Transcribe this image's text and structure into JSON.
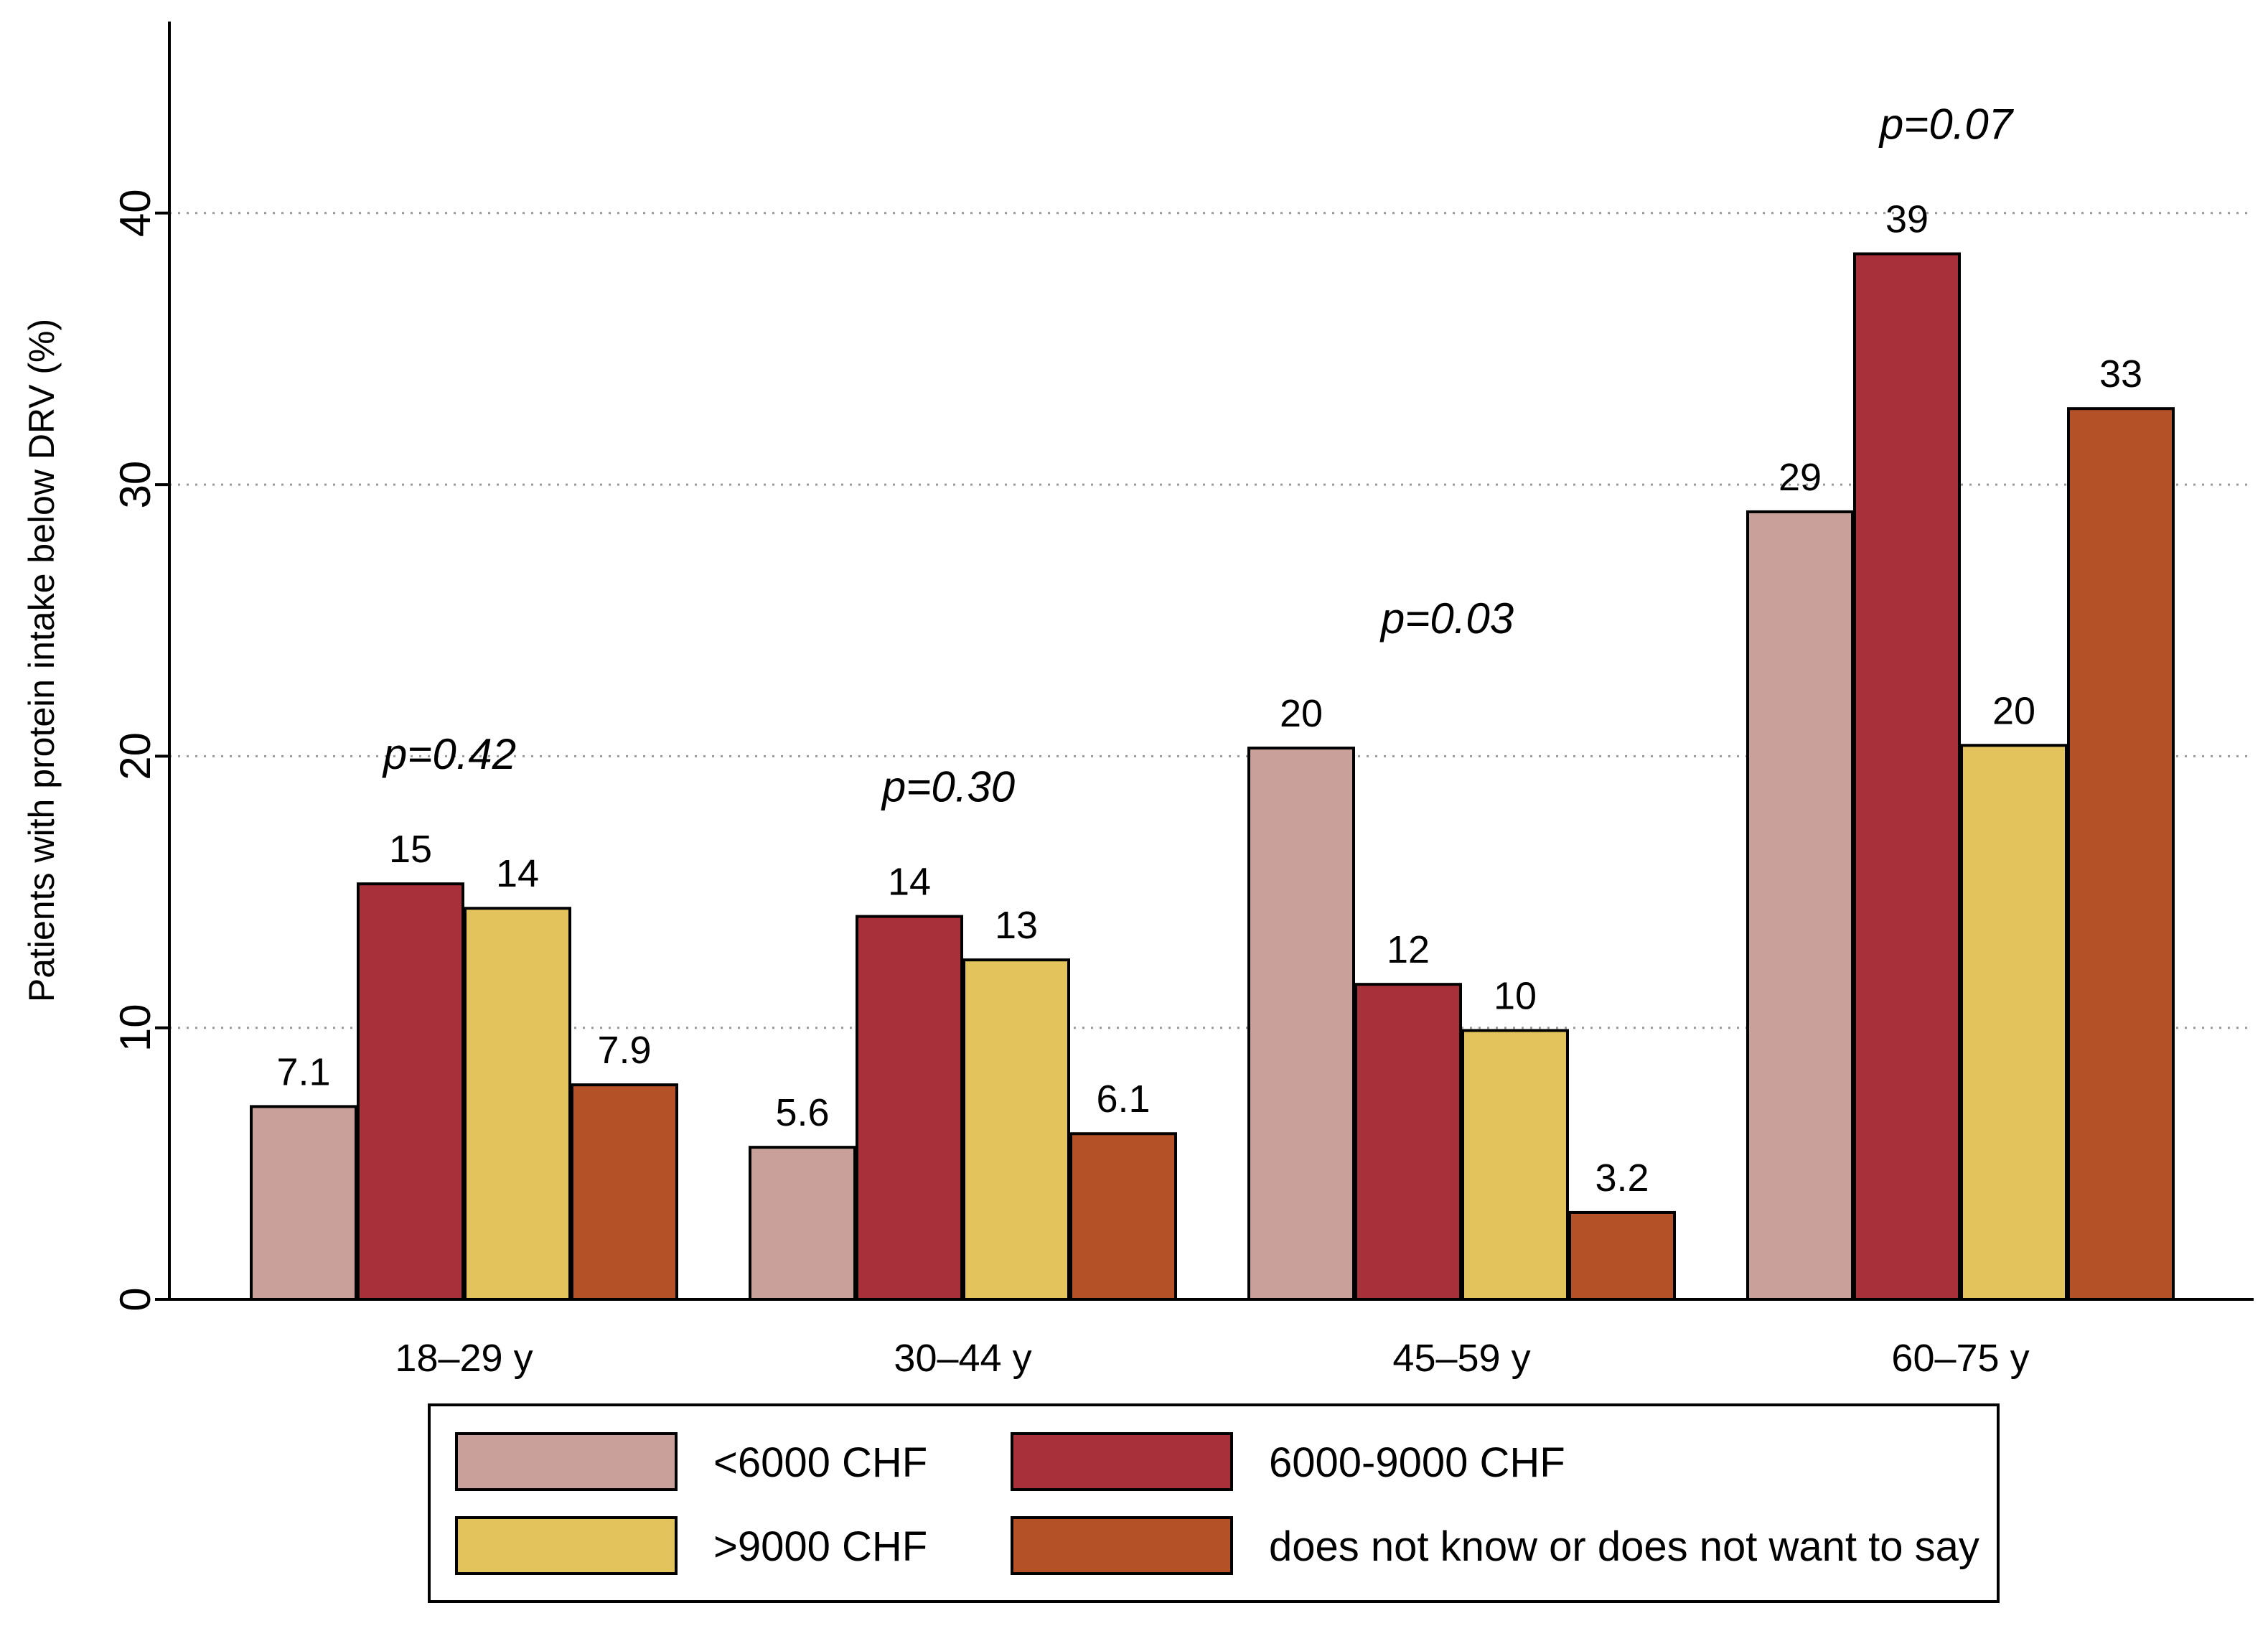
{
  "chart_data": {
    "type": "bar",
    "title": "",
    "xlabel": "",
    "ylabel": "Patients with protein intake below DRV (%)",
    "ylim": [
      0,
      47
    ],
    "yticks": [
      0,
      10,
      20,
      30,
      40
    ],
    "grid": "horizontal dotted",
    "categories": [
      "18–29 y",
      "30–44 y",
      "45–59 y",
      "60–75 y"
    ],
    "p_values": [
      "p=0.42",
      "p=0.30",
      "p=0.03",
      "p=0.07"
    ],
    "series": [
      {
        "name": "<6000 CHF",
        "color": "#c9a19a",
        "values": [
          7.1,
          5.6,
          20.3,
          29.0
        ],
        "labels": [
          "7.1",
          "5.6",
          "20",
          "29"
        ]
      },
      {
        "name": "6000-9000 CHF",
        "color": "#a8303b",
        "values": [
          15.3,
          14.1,
          11.6,
          38.5
        ],
        "labels": [
          "15",
          "14",
          "12",
          "39"
        ]
      },
      {
        "name": ">9000 CHF",
        "color": "#e2c35c",
        "values": [
          14.4,
          12.5,
          9.9,
          20.4
        ],
        "labels": [
          "14",
          "13",
          "10",
          "20"
        ]
      },
      {
        "name": "does not know or does not want to say",
        "color": "#b45126",
        "values": [
          7.9,
          6.1,
          3.2,
          32.8
        ],
        "labels": [
          "7.9",
          "6.1",
          "3.2",
          "33"
        ]
      }
    ],
    "legend": {
      "placement": "bottom",
      "columns": 2
    }
  }
}
